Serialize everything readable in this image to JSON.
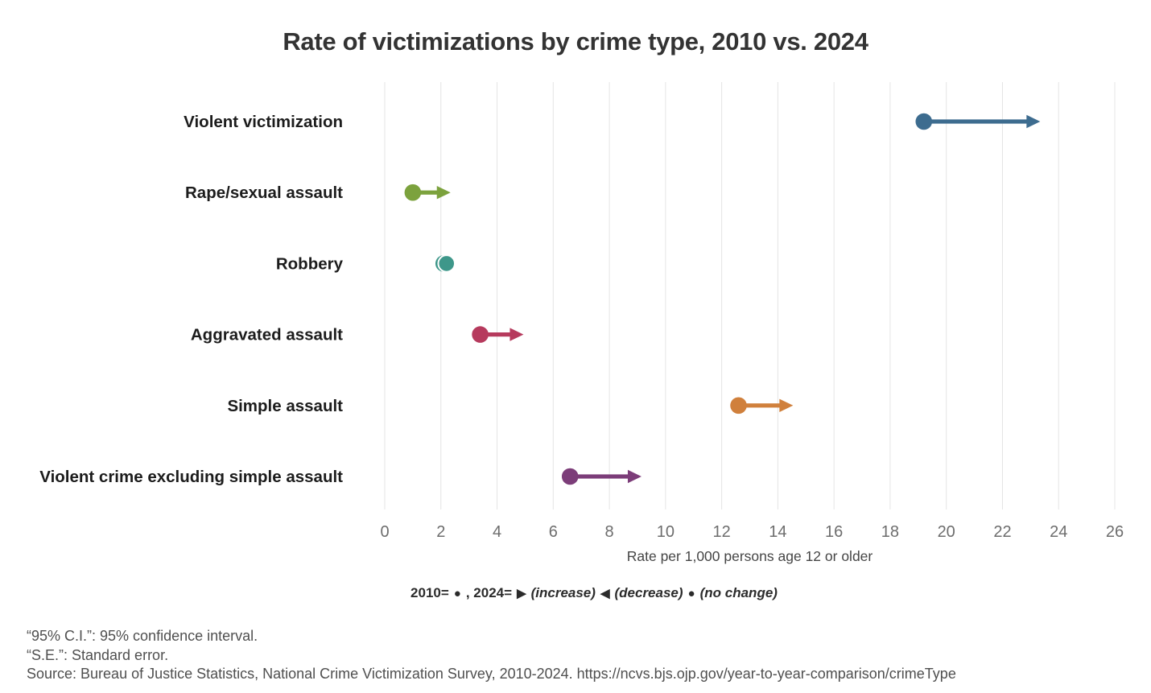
{
  "title": "Rate of victimizations by crime type, 2010 vs. 2024",
  "chart_data": {
    "type": "dumbbell-arrow",
    "title": "Rate of victimizations by crime type, 2010 vs. 2024",
    "categories": [
      "Violent victimization",
      "Rape/sexual assault",
      "Robbery",
      "Aggravated assault",
      "Simple assault",
      "Violent crime excluding simple assault"
    ],
    "series": [
      {
        "name": "2010",
        "values": [
          19.2,
          1.0,
          2.1,
          3.4,
          12.6,
          6.6
        ]
      },
      {
        "name": "2024",
        "values": [
          23.1,
          2.1,
          2.2,
          4.7,
          14.3,
          8.9
        ]
      }
    ],
    "directions": [
      "increase",
      "increase",
      "no_change",
      "increase",
      "increase",
      "increase"
    ],
    "colors": [
      "#3d6c8f",
      "#7ca23d",
      "#3e978a",
      "#b63a5d",
      "#d0803c",
      "#7c3d79"
    ],
    "xlabel": "Rate per 1,000 persons age 12 or older",
    "xlim": [
      0,
      26
    ],
    "xticks": [
      0,
      2,
      4,
      6,
      8,
      10,
      12,
      14,
      16,
      18,
      20,
      22,
      24,
      26
    ],
    "grid": "vertical-only",
    "legend_position": "bottom"
  },
  "legend": {
    "parts": [
      {
        "text": "2010=",
        "style": "bold"
      },
      {
        "symbol": "●",
        "name": "circle-2010"
      },
      {
        "text": ", 2024=",
        "style": "bold"
      },
      {
        "symbol": "▶",
        "name": "triangle-right"
      },
      {
        "text": "(increase)",
        "style": "bold-italic"
      },
      {
        "symbol": "◀",
        "name": "triangle-left"
      },
      {
        "text": "(decrease)",
        "style": "bold-italic"
      },
      {
        "symbol": "●",
        "name": "circle-no-change"
      },
      {
        "text": "(no change)",
        "style": "bold-italic"
      }
    ]
  },
  "footnotes": {
    "lines": [
      "“95% C.I.”: 95% confidence interval.",
      "“S.E.”: Standard error.",
      "Source: Bureau of Justice Statistics, National Crime Victimization Survey, 2010-2024. https://ncvs.bjs.ojp.gov/year-to-year-comparison/crimeType"
    ]
  }
}
